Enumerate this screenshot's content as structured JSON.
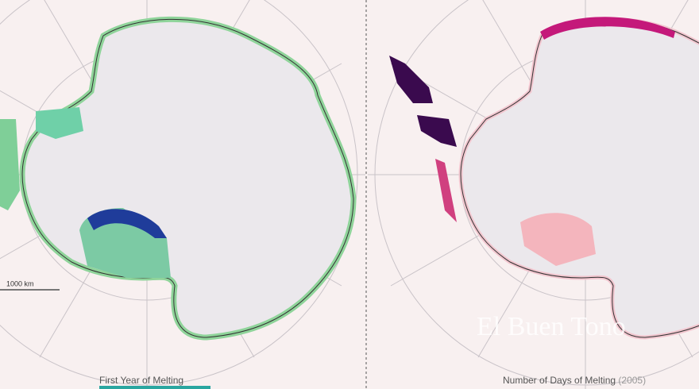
{
  "panels": [
    {
      "caption": "First Year of Melting"
    },
    {
      "caption": "Number of Days of Melting",
      "year": "(2005)"
    }
  ],
  "scale_bar": "1000 km",
  "watermark": "El Buen Tono"
}
